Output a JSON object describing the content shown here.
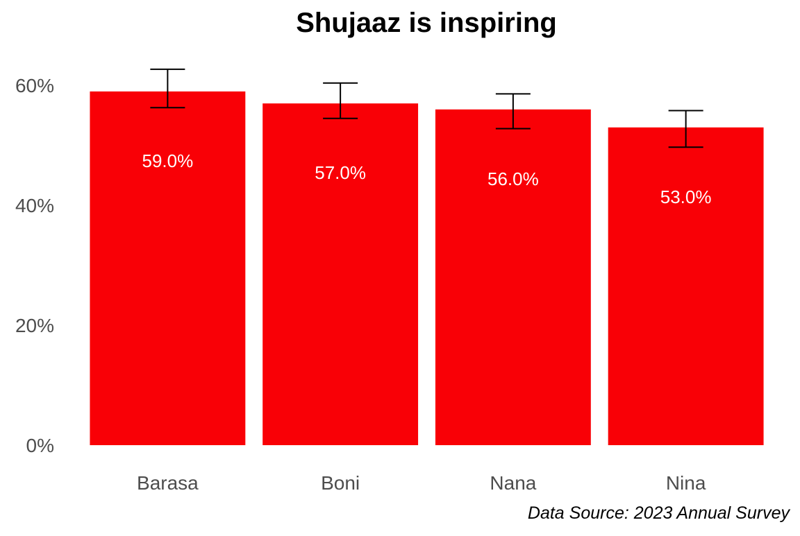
{
  "chart_data": {
    "type": "bar",
    "title": "Shujaaz is inspiring",
    "caption": "Data Source: 2023 Annual Survey",
    "categories": [
      "Barasa",
      "Boni",
      "Nana",
      "Nina"
    ],
    "values": [
      59.0,
      57.0,
      56.0,
      53.0
    ],
    "value_labels": [
      "59.0%",
      "57.0%",
      "56.0%",
      "53.0%"
    ],
    "error_low": [
      56.3,
      54.5,
      52.8,
      49.7
    ],
    "error_high": [
      62.7,
      60.4,
      58.6,
      55.8
    ],
    "y_ticks": [
      {
        "value": 0,
        "label": "0%"
      },
      {
        "value": 20,
        "label": "20%"
      },
      {
        "value": 40,
        "label": "40%"
      },
      {
        "value": 60,
        "label": "60%"
      }
    ],
    "ylim": [
      0,
      65
    ],
    "grid": false,
    "legend": "none",
    "bar_color": "#f90006",
    "label_color": "#ffffff",
    "axis_text_color": "#4d4d4d"
  }
}
